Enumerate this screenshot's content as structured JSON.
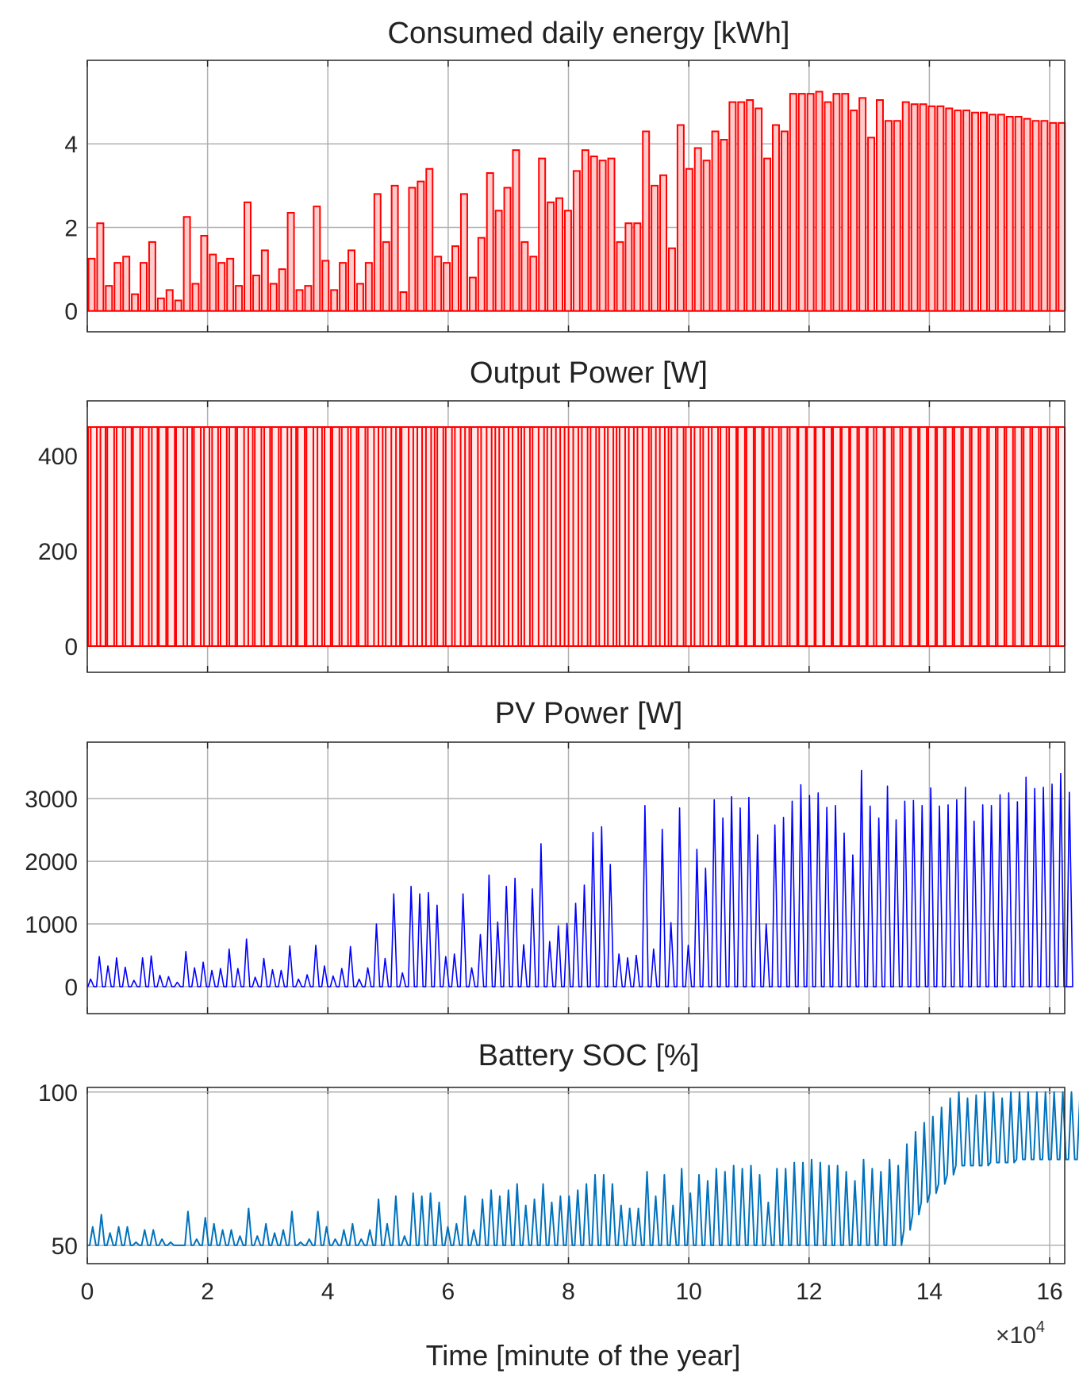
{
  "figure": {
    "xlabel": "Time [minute of the year]",
    "x_exponent_base": "×10",
    "x_exponent_power": "4"
  },
  "chart_data": [
    {
      "type": "bar",
      "title": "Consumed daily energy [kWh]",
      "ylabel": "",
      "xlim": [
        0,
        16.25
      ],
      "ylim": [
        -0.5,
        6.0
      ],
      "yticks": [
        0,
        2,
        4
      ],
      "xticks": [
        0,
        2,
        4,
        6,
        8,
        10,
        12,
        14,
        16
      ],
      "x_unit_scale": 10000,
      "grid": true,
      "color": "#ff0000",
      "fill": "#ffcccc",
      "day_values_kwh": [
        1.25,
        2.1,
        0.6,
        1.15,
        1.3,
        0.4,
        1.15,
        1.65,
        0.3,
        0.5,
        0.25,
        2.25,
        0.65,
        1.8,
        1.35,
        1.15,
        1.25,
        0.6,
        2.6,
        0.85,
        1.45,
        0.65,
        1.0,
        2.35,
        0.5,
        0.6,
        2.5,
        1.2,
        0.5,
        1.15,
        1.45,
        0.65,
        1.15,
        2.8,
        1.65,
        3.0,
        0.45,
        2.95,
        3.1,
        3.4,
        1.3,
        1.15,
        1.55,
        2.8,
        0.8,
        1.75,
        3.3,
        2.4,
        2.95,
        3.85,
        1.65,
        1.3,
        3.65,
        2.6,
        2.7,
        2.4,
        3.35,
        3.85,
        3.7,
        3.6,
        3.65,
        1.65,
        2.1,
        2.1,
        4.3,
        3.0,
        3.25,
        1.5,
        4.45,
        3.4,
        3.9,
        3.6,
        4.3,
        4.1,
        5.0,
        5.0,
        5.05,
        4.85,
        3.65,
        4.45,
        4.3,
        5.2,
        5.2,
        5.2,
        5.25,
        5.0,
        5.2,
        5.2,
        4.8,
        5.1,
        4.15,
        5.05,
        4.55,
        4.55,
        5.0,
        4.95,
        4.95,
        4.9,
        4.9,
        4.85,
        4.8,
        4.8,
        4.75,
        4.75,
        4.7,
        4.7,
        4.65,
        4.65,
        4.6,
        4.55,
        4.55,
        4.5,
        4.5
      ]
    },
    {
      "type": "line",
      "title": "Output Power [W]",
      "ylabel": "",
      "xlim": [
        0,
        16.25
      ],
      "ylim": [
        -55,
        515
      ],
      "yticks": [
        0,
        200,
        400
      ],
      "xticks": [
        0,
        2,
        4,
        6,
        8,
        10,
        12,
        14,
        16
      ],
      "grid": true,
      "color": "#ff0000",
      "pulse_level_w": 460,
      "description": "daily rectangular load pulses from 0 to 460 W, width proportional to daily energy"
    },
    {
      "type": "line",
      "title": "PV Power [W]",
      "ylabel": "",
      "xlim": [
        0,
        16.25
      ],
      "ylim": [
        -430,
        3900
      ],
      "yticks": [
        0,
        1000,
        2000,
        3000
      ],
      "xticks": [
        0,
        2,
        4,
        6,
        8,
        10,
        12,
        14,
        16
      ],
      "grid": true,
      "color": "#0000ff",
      "daily_peak_w": [
        120,
        480,
        330,
        460,
        310,
        100,
        460,
        490,
        180,
        160,
        70,
        560,
        300,
        390,
        260,
        290,
        600,
        290,
        760,
        150,
        450,
        270,
        260,
        650,
        120,
        190,
        660,
        330,
        170,
        290,
        640,
        120,
        300,
        1000,
        450,
        1480,
        220,
        1600,
        1480,
        1500,
        1300,
        480,
        520,
        1480,
        300,
        830,
        1780,
        1030,
        1600,
        1730,
        670,
        1560,
        2280,
        720,
        970,
        1010,
        1330,
        1620,
        2460,
        2550,
        1950,
        520,
        460,
        500,
        2890,
        600,
        2510,
        1020,
        2850,
        660,
        2190,
        1890,
        2980,
        2690,
        3030,
        2850,
        3020,
        2420,
        1000,
        2580,
        2700,
        2960,
        3220,
        3050,
        3090,
        2860,
        2890,
        2450,
        2100,
        3450,
        2880,
        2690,
        3200,
        2660,
        2960,
        2970,
        2890,
        3170,
        2880,
        2900,
        2980,
        3180,
        2640,
        2900,
        2890,
        3060,
        3090,
        2950,
        3340,
        3160,
        3180,
        3230,
        3400,
        3100
      ]
    },
    {
      "type": "line",
      "title": "Battery SOC [%]",
      "ylabel": "",
      "xlim": [
        0,
        16.25
      ],
      "ylim": [
        44,
        101.5
      ],
      "yticks": [
        50,
        100
      ],
      "xticks": [
        0,
        2,
        4,
        6,
        8,
        10,
        12,
        14,
        16
      ],
      "xticklabels": [
        "0",
        "2",
        "4",
        "6",
        "8",
        "10",
        "12",
        "14",
        "16"
      ],
      "grid": true,
      "color": "#0072bd",
      "daily_max_pct": [
        56,
        60,
        54,
        56,
        56,
        51,
        55,
        55,
        52,
        51,
        50,
        61,
        52,
        59,
        57,
        55,
        55,
        53,
        62,
        53,
        57,
        54,
        55,
        61,
        51,
        52,
        61,
        56,
        52,
        55,
        57,
        52,
        55,
        65,
        57,
        66,
        53,
        67,
        66,
        67,
        64,
        56,
        57,
        66,
        55,
        65,
        68,
        66,
        68,
        70,
        63,
        65,
        70,
        64,
        66,
        66,
        68,
        70,
        73,
        73,
        70,
        63,
        62,
        62,
        74,
        66,
        73,
        63,
        75,
        67,
        73,
        71,
        75,
        74,
        76,
        75,
        76,
        73,
        64,
        75,
        75,
        77,
        77,
        78,
        77,
        76,
        76,
        74,
        71,
        78,
        75,
        74,
        78,
        76,
        83,
        87,
        90,
        92,
        95,
        98,
        100,
        98,
        99,
        100,
        100,
        98,
        100,
        100,
        100,
        100,
        100,
        100,
        100,
        100,
        100
      ],
      "daily_min_pct": [
        50,
        50,
        50,
        50,
        50,
        50,
        50,
        50,
        50,
        50,
        50,
        50,
        50,
        50,
        50,
        50,
        50,
        50,
        50,
        50,
        50,
        50,
        50,
        50,
        50,
        50,
        50,
        50,
        50,
        50,
        50,
        50,
        50,
        50,
        50,
        50,
        50,
        50,
        50,
        50,
        50,
        50,
        50,
        50,
        50,
        50,
        50,
        50,
        50,
        50,
        50,
        50,
        50,
        50,
        50,
        50,
        50,
        50,
        50,
        50,
        50,
        50,
        50,
        50,
        50,
        50,
        50,
        50,
        50,
        50,
        50,
        50,
        50,
        50,
        50,
        50,
        50,
        50,
        50,
        50,
        50,
        50,
        50,
        50,
        50,
        50,
        50,
        50,
        50,
        50,
        50,
        50,
        50,
        50,
        55,
        60,
        64,
        67,
        70,
        73,
        76,
        76,
        76,
        76,
        77,
        77,
        77,
        78,
        78,
        78,
        78,
        78,
        78,
        78,
        78
      ]
    }
  ]
}
